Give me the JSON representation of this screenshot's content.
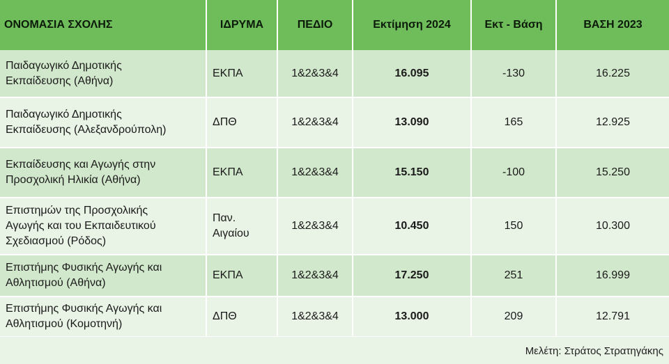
{
  "table": {
    "headers": [
      "ΟΝΟΜΑΣΙΑ ΣΧΟΛΗΣ",
      "ΙΔΡΥΜΑ",
      "ΠΕΔΙΟ",
      "Εκτίμηση  2024",
      "Εκτ - Βάση",
      "ΒΑΣΗ 2023"
    ],
    "rows": [
      {
        "name_1": "Παιδαγωγικό Δημοτικής",
        "name_2": "Εκπαίδευσης (Αθήνα)",
        "name_3": "",
        "institution_1": "ΕΚΠΑ",
        "institution_2": "",
        "field": "1&2&3&4",
        "estimate_2024": "16.095",
        "difference": "-130",
        "base_2023": "16.225"
      },
      {
        "name_1": "Παιδαγωγικό Δημοτικής",
        "name_2": "Εκπαίδευσης (Αλεξανδρούπολη)",
        "name_3": "",
        "institution_1": "ΔΠΘ",
        "institution_2": "",
        "field": "1&2&3&4",
        "estimate_2024": "13.090",
        "difference": "165",
        "base_2023": "12.925"
      },
      {
        "name_1": "Εκπαίδευσης και Αγωγής στην",
        "name_2": "Προσχολική Ηλικία (Αθήνα)",
        "name_3": "",
        "institution_1": "ΕΚΠΑ",
        "institution_2": "",
        "field": "1&2&3&4",
        "estimate_2024": "15.150",
        "difference": "-100",
        "base_2023": "15.250"
      },
      {
        "name_1": "Επιστημών της Προσχολικής",
        "name_2": "Αγωγής και του Εκπαιδευτικού",
        "name_3": "Σχεδιασμού (Ρόδος)",
        "institution_1": "Παν.",
        "institution_2": "Αιγαίου",
        "field": "1&2&3&4",
        "estimate_2024": "10.450",
        "difference": "150",
        "base_2023": "10.300"
      },
      {
        "name_1": "Επιστήμης Φυσικής Αγωγής και",
        "name_2": "Αθλητισμού (Αθήνα)",
        "name_3": "",
        "institution_1": "ΕΚΠΑ",
        "institution_2": "",
        "field": "1&2&3&4",
        "estimate_2024": "17.250",
        "difference": "251",
        "base_2023": "16.999"
      },
      {
        "name_1": "Επιστήμης Φυσικής Αγωγής και",
        "name_2": "Αθλητισμού (Κομοτηνή)",
        "name_3": "",
        "institution_1": "ΔΠΘ",
        "institution_2": "",
        "field": "1&2&3&4",
        "estimate_2024": "13.000",
        "difference": "209",
        "base_2023": "12.791"
      }
    ]
  },
  "footer": {
    "credit": "Μελέτη: Στράτος Στρατηγάκης"
  },
  "colors": {
    "header_green": "#6ebd5a",
    "row_dark": "#d2e8cc",
    "row_light": "#e9f3e6"
  }
}
